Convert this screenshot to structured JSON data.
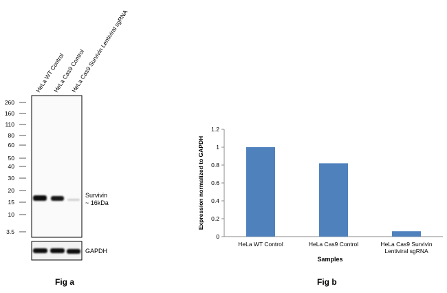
{
  "fig_a": {
    "caption": "Fig a",
    "lanes": [
      "HeLa WT Control",
      "HeLa Cas9 Control",
      "HeLa Cas9 Survivin Lentiviral sgRNA"
    ],
    "markers": [
      "260",
      "160",
      "110",
      "80",
      "60",
      "50",
      "40",
      "30",
      "20",
      "15",
      "10",
      "3.5"
    ],
    "band_label_line1": "Survivin",
    "band_label_line2": "~ 16kDa",
    "loading_control_label": "GAPDH"
  },
  "chart_data": {
    "type": "bar",
    "caption": "Fig b",
    "categories": [
      [
        "HeLa WT Control"
      ],
      [
        "HeLa Cas9 Control"
      ],
      [
        "HeLa Cas9 Survivin",
        "Lentiviral sgRNA"
      ]
    ],
    "values": [
      1.0,
      0.82,
      0.06
    ],
    "title": "",
    "xlabel": "Samples",
    "ylabel": "Expression  normalized to GAPDH",
    "ylim": [
      0,
      1.2
    ],
    "yticks": [
      "0",
      "0.2",
      "0.4",
      "0.6",
      "0.8",
      "1",
      "1.2"
    ],
    "bar_color": "#4f81bd",
    "grid": false
  }
}
